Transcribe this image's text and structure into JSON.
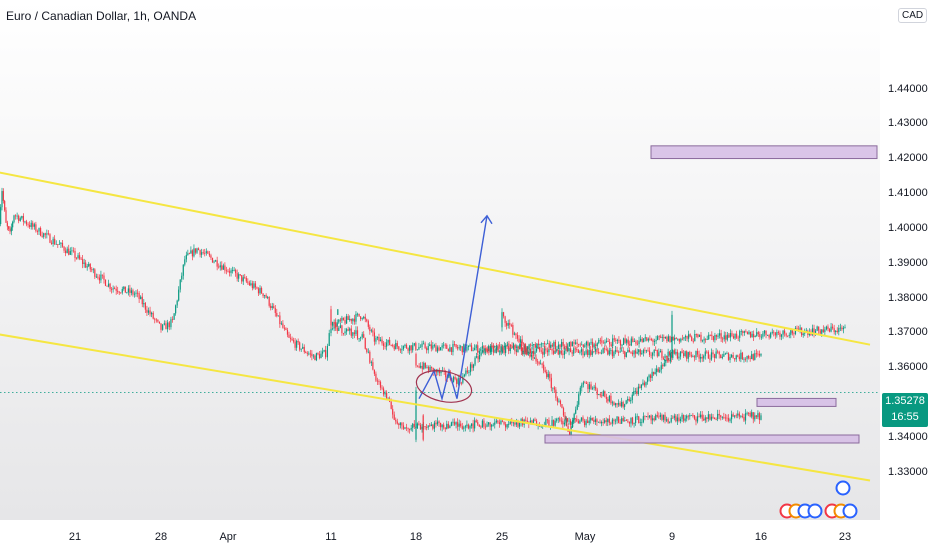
{
  "header": {
    "title": "Euro / Canadian Dollar, 1h, OANDA",
    "currency": "CAD"
  },
  "price_tag": {
    "price": "1.35278",
    "countdown": "16:55"
  },
  "colors": {
    "up": "#089981",
    "down": "#f23645",
    "channel": "#f5e642",
    "zone": "#d6bfe6",
    "zone_border": "#8a6a9c",
    "arrow": "#3d5fd6",
    "ellipse": "#a0334f"
  },
  "chart_data": {
    "type": "candlestick",
    "title": "Euro / Canadian Dollar, 1h, OANDA",
    "y_ticks": [
      "1.44000",
      "1.43000",
      "1.42000",
      "1.41000",
      "1.40000",
      "1.39000",
      "1.38000",
      "1.37000",
      "1.36000",
      "1.35000",
      "1.34000",
      "1.33000"
    ],
    "x_ticks": [
      "21",
      "28",
      "Apr",
      "11",
      "18",
      "25",
      "May",
      "9",
      "16",
      "23"
    ],
    "ylim": [
      1.3245,
      1.4485
    ],
    "close_path": [
      {
        "x": "start",
        "y": 1.398
      },
      {
        "x": "start+1",
        "y": 1.411
      },
      {
        "x": "start+2",
        "y": 1.401
      },
      {
        "x": "start+3",
        "y": 1.398
      },
      {
        "x": "start+4",
        "y": 1.404
      },
      {
        "x": "21",
        "y": 1.392
      },
      {
        "x": "24",
        "y": 1.383
      },
      {
        "x": "26",
        "y": 1.381
      },
      {
        "x": "28",
        "y": 1.371
      },
      {
        "x": "29",
        "y": 1.373
      },
      {
        "x": "30",
        "y": 1.391
      },
      {
        "x": "31",
        "y": 1.394
      },
      {
        "x": "Apr",
        "y": 1.388
      },
      {
        "x": "Apr 4",
        "y": 1.381
      },
      {
        "x": "Apr 6",
        "y": 1.368
      },
      {
        "x": "Apr 8",
        "y": 1.363
      },
      {
        "x": "Apr 9",
        "y": 1.364
      },
      {
        "x": "11",
        "y": 1.372
      },
      {
        "x": "12",
        "y": 1.375
      },
      {
        "x": "13",
        "y": 1.368
      },
      {
        "x": "15",
        "y": 1.366
      },
      {
        "x": "16",
        "y": 1.363
      },
      {
        "x": "18",
        "y": 1.361
      },
      {
        "x": "20",
        "y": 1.356
      },
      {
        "x": "22",
        "y": 1.365
      },
      {
        "x": "23",
        "y": 1.371
      },
      {
        "x": "25",
        "y": 1.375
      },
      {
        "x": "26",
        "y": 1.362
      },
      {
        "x": "27",
        "y": 1.359
      },
      {
        "x": "28",
        "y": 1.351
      },
      {
        "x": "29",
        "y": 1.341
      },
      {
        "x": "30",
        "y": 1.356
      },
      {
        "x": "May 2",
        "y": 1.353
      },
      {
        "x": "May 4",
        "y": 1.349
      },
      {
        "x": "May 6",
        "y": 1.356
      },
      {
        "x": "May 8",
        "y": 1.363
      },
      {
        "x": "9",
        "y": 1.374
      },
      {
        "x": "10",
        "y": 1.376
      },
      {
        "x": "11",
        "y": 1.372
      },
      {
        "x": "12",
        "y": 1.369
      },
      {
        "x": "13",
        "y": 1.358
      },
      {
        "x": "14",
        "y": 1.351
      },
      {
        "x": "15",
        "y": 1.343
      },
      {
        "x": "16",
        "y": 1.346
      },
      {
        "x": "17",
        "y": 1.339
      },
      {
        "x": "18",
        "y": 1.3528
      }
    ],
    "last_price": 1.35278,
    "grid": false,
    "annotations": {
      "channel_upper": [
        {
          "x": "start",
          "y": 1.416
        },
        {
          "x": "end",
          "y": 1.3665
        }
      ],
      "channel_lower": [
        {
          "x": "start",
          "y": 1.3695
        },
        {
          "x": "end",
          "y": 1.3275
        }
      ],
      "target_zone": {
        "y_low": 1.4205,
        "y_high": 1.423
      },
      "support_zone": {
        "y_low": 1.339,
        "y_high": 1.34
      },
      "mid_zone": {
        "y_low": 1.3495,
        "y_high": 1.3505
      },
      "projection_arrow": [
        {
          "y": 1.351
        },
        {
          "y": 1.359
        },
        {
          "y": 1.351
        },
        {
          "y": 1.359
        },
        {
          "y": 1.351
        },
        {
          "y": 1.4035
        }
      ],
      "ellipse_y": 1.3545
    }
  }
}
